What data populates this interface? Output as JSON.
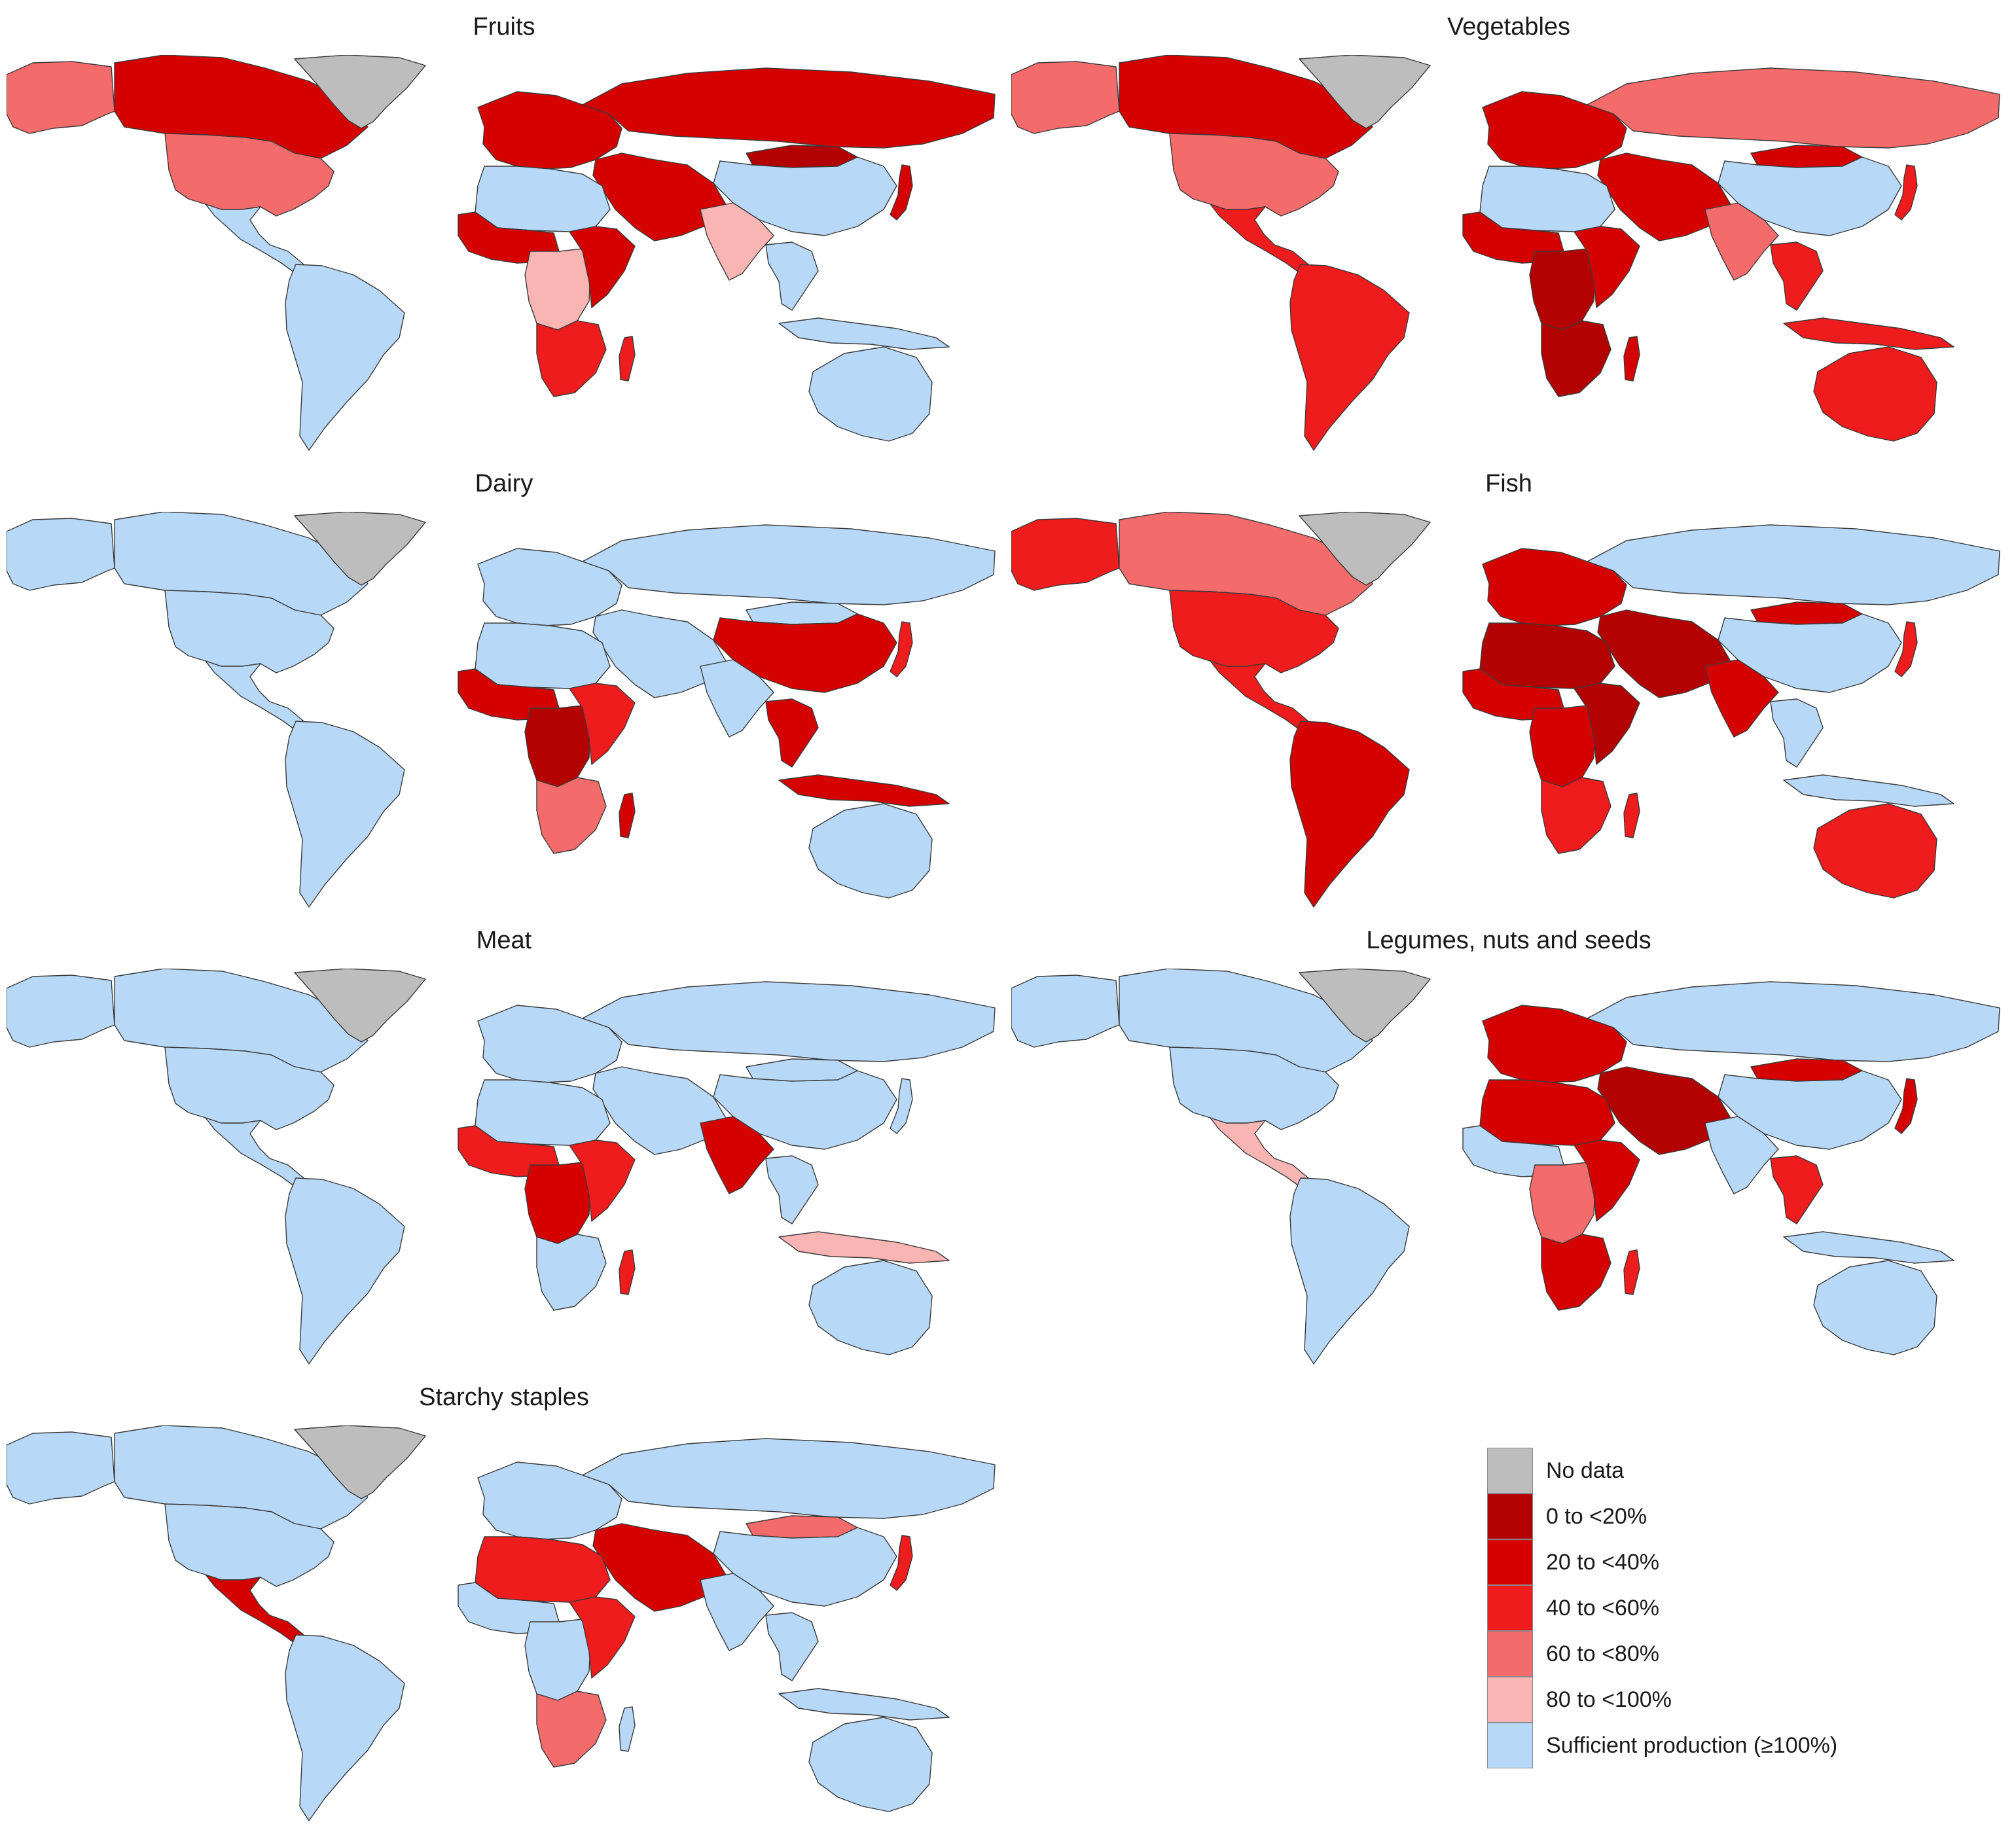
{
  "classes": [
    {
      "key": "nodata",
      "label": "No data",
      "color": "#BDBDBD"
    },
    {
      "key": "c0",
      "label": "0 to <20%",
      "color": "#B30000"
    },
    {
      "key": "c20",
      "label": "20 to <40%",
      "color": "#D50000"
    },
    {
      "key": "c40",
      "label": "40 to <60%",
      "color": "#EE1C1C"
    },
    {
      "key": "c60",
      "label": "60 to <80%",
      "color": "#F46B6B"
    },
    {
      "key": "c80",
      "label": "80 to <100%",
      "color": "#F9B4B4"
    },
    {
      "key": "suff",
      "label": "Sufficient production (≥100%)",
      "color": "#B7D8F7"
    }
  ],
  "panels": [
    {
      "title": "Fruits",
      "regions": {
        "greenland": "nodata",
        "alaska": "c60",
        "canada": "c20",
        "usa": "c60",
        "mexico_ca": "suff",
        "south_america": "suff",
        "europe": "c20",
        "russia": "c20",
        "china": "suff",
        "mongolia": "c0",
        "india": "c80",
        "middle_east": "c20",
        "north_africa": "suff",
        "west_africa": "c20",
        "central_africa": "c80",
        "east_africa": "c20",
        "southern_africa": "c40",
        "madagascar": "c40",
        "southeast_asia": "suff",
        "indonesia": "suff",
        "japan": "c20",
        "australia": "suff"
      }
    },
    {
      "title": "Vegetables",
      "regions": {
        "greenland": "nodata",
        "alaska": "c60",
        "canada": "c20",
        "usa": "c60",
        "mexico_ca": "c40",
        "south_america": "c40",
        "europe": "c20",
        "russia": "c60",
        "china": "suff",
        "mongolia": "c20",
        "india": "c60",
        "middle_east": "c20",
        "north_africa": "suff",
        "west_africa": "c20",
        "central_africa": "c0",
        "east_africa": "c20",
        "southern_africa": "c0",
        "madagascar": "c20",
        "southeast_asia": "c40",
        "indonesia": "c40",
        "japan": "c40",
        "australia": "c40"
      }
    },
    {
      "title": "Dairy",
      "regions": {
        "greenland": "nodata",
        "alaska": "suff",
        "canada": "suff",
        "usa": "suff",
        "mexico_ca": "suff",
        "south_america": "suff",
        "europe": "suff",
        "russia": "suff",
        "china": "c20",
        "mongolia": "suff",
        "india": "suff",
        "middle_east": "suff",
        "north_africa": "suff",
        "west_africa": "c20",
        "central_africa": "c0",
        "east_africa": "c40",
        "southern_africa": "c60",
        "madagascar": "c20",
        "southeast_asia": "c20",
        "indonesia": "c20",
        "japan": "c40",
        "australia": "suff"
      }
    },
    {
      "title": "Fish",
      "regions": {
        "greenland": "nodata",
        "alaska": "c40",
        "canada": "c60",
        "usa": "c40",
        "mexico_ca": "c40",
        "south_america": "c20",
        "europe": "c20",
        "russia": "suff",
        "china": "suff",
        "mongolia": "c20",
        "india": "c20",
        "middle_east": "c0",
        "north_africa": "c0",
        "west_africa": "c20",
        "central_africa": "c20",
        "east_africa": "c0",
        "southern_africa": "c40",
        "madagascar": "c40",
        "southeast_asia": "suff",
        "indonesia": "suff",
        "japan": "c40",
        "australia": "c40"
      }
    },
    {
      "title": "Meat",
      "regions": {
        "greenland": "nodata",
        "alaska": "suff",
        "canada": "suff",
        "usa": "suff",
        "mexico_ca": "suff",
        "south_america": "suff",
        "europe": "suff",
        "russia": "suff",
        "china": "suff",
        "mongolia": "suff",
        "india": "c20",
        "middle_east": "suff",
        "north_africa": "suff",
        "west_africa": "c40",
        "central_africa": "c20",
        "east_africa": "c40",
        "southern_africa": "suff",
        "madagascar": "c40",
        "southeast_asia": "suff",
        "indonesia": "c80",
        "japan": "suff",
        "australia": "suff"
      }
    },
    {
      "title": "Legumes, nuts and seeds",
      "regions": {
        "greenland": "nodata",
        "alaska": "suff",
        "canada": "suff",
        "usa": "suff",
        "mexico_ca": "c80",
        "south_america": "suff",
        "europe": "c20",
        "russia": "suff",
        "china": "suff",
        "mongolia": "c20",
        "india": "suff",
        "middle_east": "c0",
        "north_africa": "c20",
        "west_africa": "suff",
        "central_africa": "c60",
        "east_africa": "c20",
        "southern_africa": "c20",
        "madagascar": "c40",
        "southeast_asia": "c40",
        "indonesia": "suff",
        "japan": "c20",
        "australia": "suff"
      }
    },
    {
      "title": "Starchy staples",
      "regions": {
        "greenland": "nodata",
        "alaska": "suff",
        "canada": "suff",
        "usa": "suff",
        "mexico_ca": "c20",
        "south_america": "suff",
        "europe": "suff",
        "russia": "suff",
        "china": "suff",
        "mongolia": "c60",
        "india": "suff",
        "middle_east": "c20",
        "north_africa": "c40",
        "west_africa": "suff",
        "central_africa": "suff",
        "east_africa": "c40",
        "southern_africa": "c60",
        "madagascar": "suff",
        "southeast_asia": "suff",
        "indonesia": "suff",
        "japan": "c40",
        "australia": "suff"
      }
    }
  ]
}
